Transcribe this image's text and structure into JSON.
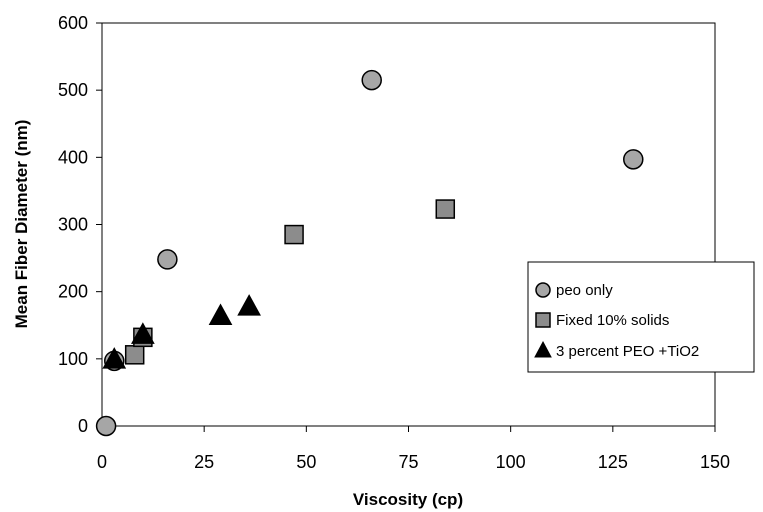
{
  "chart_data": {
    "type": "scatter",
    "xlabel": "Viscosity (cp)",
    "ylabel": "Mean Fiber Diameter (nm)",
    "xlim": [
      0,
      150
    ],
    "ylim": [
      0,
      600
    ],
    "x_ticks": [
      0,
      25,
      50,
      75,
      100,
      125,
      150
    ],
    "y_ticks": [
      0,
      100,
      200,
      300,
      400,
      500,
      600
    ],
    "grid": false,
    "legend_position": "right",
    "series": [
      {
        "name": "peo only",
        "marker": "circle",
        "color": "#a6a6a6",
        "points": [
          {
            "x": 1,
            "y": 0
          },
          {
            "x": 3,
            "y": 97
          },
          {
            "x": 16,
            "y": 248
          },
          {
            "x": 66,
            "y": 515
          },
          {
            "x": 130,
            "y": 397
          }
        ]
      },
      {
        "name": "Fixed 10% solids",
        "marker": "square",
        "color": "#8c8c8c",
        "points": [
          {
            "x": 8,
            "y": 106
          },
          {
            "x": 10,
            "y": 132
          },
          {
            "x": 47,
            "y": 285
          },
          {
            "x": 84,
            "y": 323
          }
        ]
      },
      {
        "name": "3 percent PEO +TiO2",
        "marker": "triangle",
        "color": "#000000",
        "points": [
          {
            "x": 3,
            "y": 98
          },
          {
            "x": 10,
            "y": 135
          },
          {
            "x": 29,
            "y": 163
          },
          {
            "x": 36,
            "y": 177
          }
        ]
      }
    ]
  }
}
